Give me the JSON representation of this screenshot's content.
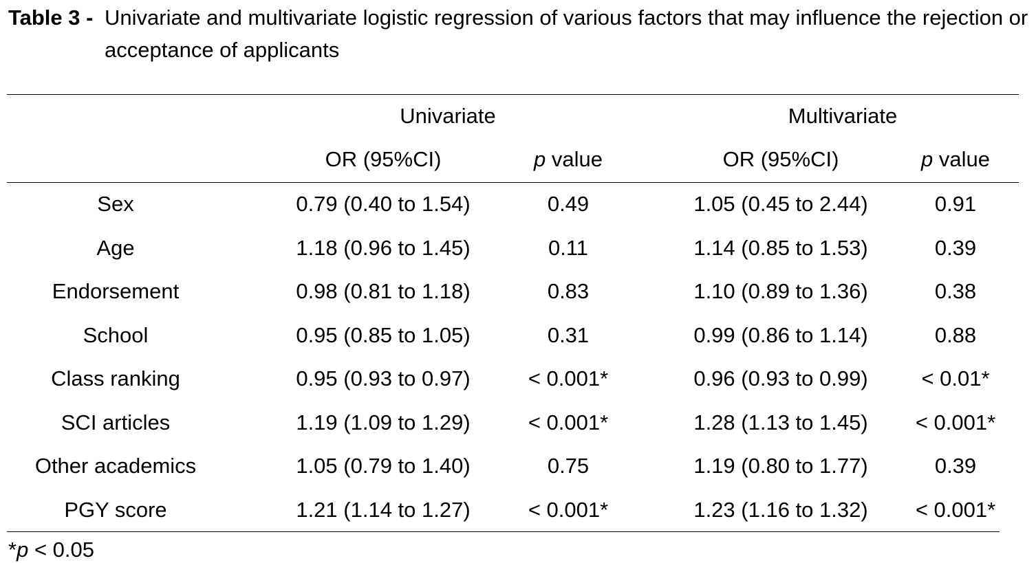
{
  "caption": {
    "label": "Table 3 -",
    "text": "Univariate and multivariate logistic regression of various factors that may influence the rejection or acceptance of applicants"
  },
  "header": {
    "group_univariate": "Univariate",
    "group_multivariate": "Multivariate",
    "col_or": "OR (95%CI)",
    "col_p_italic": "p",
    "col_p_rest": " value"
  },
  "rows": [
    {
      "factor": "Sex",
      "uni_or": "0.79 (0.40 to 1.54)",
      "uni_p": "0.49",
      "multi_or": "1.05 (0.45 to 2.44)",
      "multi_p": "0.91"
    },
    {
      "factor": "Age",
      "uni_or": "1.18 (0.96 to 1.45)",
      "uni_p": "0.11",
      "multi_or": "1.14 (0.85 to 1.53)",
      "multi_p": "0.39"
    },
    {
      "factor": "Endorsement",
      "uni_or": "0.98 (0.81 to 1.18)",
      "uni_p": "0.83",
      "multi_or": "1.10 (0.89 to 1.36)",
      "multi_p": "0.38"
    },
    {
      "factor": "School",
      "uni_or": "0.95 (0.85 to 1.05)",
      "uni_p": "0.31",
      "multi_or": "0.99 (0.86 to 1.14)",
      "multi_p": "0.88"
    },
    {
      "factor": "Class ranking",
      "uni_or": "0.95 (0.93 to 0.97)",
      "uni_p": "< 0.001*",
      "multi_or": "0.96 (0.93 to 0.99)",
      "multi_p": "< 0.01*"
    },
    {
      "factor": "SCI articles",
      "uni_or": "1.19 (1.09 to 1.29)",
      "uni_p": "< 0.001*",
      "multi_or": "1.28 (1.13 to 1.45)",
      "multi_p": "< 0.001*"
    },
    {
      "factor": "Other academics",
      "uni_or": "1.05 (0.79 to 1.40)",
      "uni_p": "0.75",
      "multi_or": "1.19 (0.80 to 1.77)",
      "multi_p": "0.39"
    },
    {
      "factor": "PGY score",
      "uni_or": "1.21 (1.14 to 1.27)",
      "uni_p": "< 0.001*",
      "multi_or": "1.23 (1.16 to 1.32)",
      "multi_p": "< 0.001*"
    }
  ],
  "footnote": {
    "star": "*",
    "italic": "p",
    "rest": " < 0.05"
  }
}
